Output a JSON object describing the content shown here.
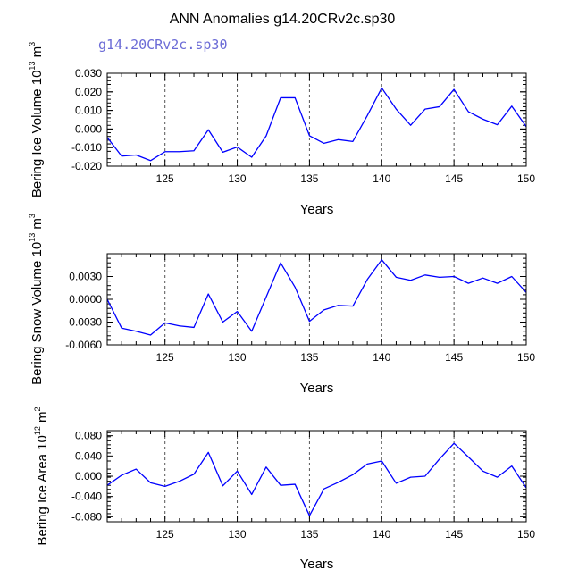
{
  "figure": {
    "title": "ANN Anomalies g14.20CRv2c.sp30",
    "case_label": "g14.20CRv2c.sp30",
    "case_label_color": "#6b6bd6",
    "line_color": "#0000ff",
    "ref_line_color": "#555555"
  },
  "chart_data": [
    {
      "type": "line",
      "xlabel": "Years",
      "ylabel_main": "Bering Ice Volume 10",
      "ylabel_sup": "13",
      "ylabel_unit": " m",
      "ylabel_unit_sup": "3",
      "xlim": [
        121,
        150
      ],
      "ylim": [
        -0.02,
        0.03
      ],
      "xticks": [
        125,
        130,
        135,
        140,
        145,
        150
      ],
      "xtick_labels": [
        "125",
        "130",
        "135",
        "140",
        "145",
        "150"
      ],
      "yticks": [
        -0.02,
        -0.01,
        0.0,
        0.01,
        0.02,
        0.03
      ],
      "ytick_labels": [
        "-0.020",
        "-0.010",
        "0.000",
        "0.010",
        "0.020",
        "0.030"
      ],
      "x": [
        121,
        122,
        123,
        124,
        125,
        126,
        127,
        128,
        129,
        130,
        131,
        132,
        133,
        134,
        135,
        136,
        137,
        138,
        139,
        140,
        141,
        142,
        143,
        144,
        145,
        146,
        147,
        148,
        149,
        150
      ],
      "y": [
        -0.0045,
        -0.0146,
        -0.014,
        -0.017,
        -0.0122,
        -0.0122,
        -0.0117,
        -0.0004,
        -0.0125,
        -0.0097,
        -0.0152,
        -0.0037,
        0.0168,
        0.0168,
        -0.0036,
        -0.0077,
        -0.0057,
        -0.0067,
        0.0072,
        0.0221,
        0.0107,
        0.002,
        0.0107,
        0.012,
        0.0213,
        0.0093,
        0.0053,
        0.0023,
        0.0123,
        0.0013
      ]
    },
    {
      "type": "line",
      "xlabel": "Years",
      "ylabel_main": "Bering Snow Volume 10",
      "ylabel_sup": "13",
      "ylabel_unit": " m",
      "ylabel_unit_sup": "3",
      "xlim": [
        121,
        150
      ],
      "ylim": [
        -0.006,
        0.006
      ],
      "xticks": [
        125,
        130,
        135,
        140,
        145,
        150
      ],
      "xtick_labels": [
        "125",
        "130",
        "135",
        "140",
        "145",
        "150"
      ],
      "yticks": [
        -0.006,
        -0.003,
        0.0,
        0.003
      ],
      "ytick_labels": [
        "-0.0060",
        "-0.0030",
        "0.0000",
        "0.0030"
      ],
      "x": [
        121,
        122,
        123,
        124,
        125,
        126,
        127,
        128,
        129,
        130,
        131,
        132,
        133,
        134,
        135,
        136,
        137,
        138,
        139,
        140,
        141,
        142,
        143,
        144,
        145,
        146,
        147,
        148,
        149,
        150
      ],
      "y": [
        0.0,
        -0.0038,
        -0.0042,
        -0.0047,
        -0.0031,
        -0.0035,
        -0.0037,
        0.0007,
        -0.003,
        -0.0016,
        -0.0042,
        0.0003,
        0.0048,
        0.0016,
        -0.0029,
        -0.0014,
        -0.0008,
        -0.0009,
        0.0026,
        0.0052,
        0.0029,
        0.0025,
        0.0032,
        0.0029,
        0.003,
        0.0021,
        0.0028,
        0.0021,
        0.003,
        0.0009
      ]
    },
    {
      "type": "line",
      "xlabel": "Years",
      "ylabel_main": "Bering Ice Area 10",
      "ylabel_sup": "12",
      "ylabel_unit": " m",
      "ylabel_unit_sup": "2",
      "xlim": [
        121,
        150
      ],
      "ylim": [
        -0.09,
        0.09
      ],
      "xticks": [
        125,
        130,
        135,
        140,
        145,
        150
      ],
      "xtick_labels": [
        "125",
        "130",
        "135",
        "140",
        "145",
        "150"
      ],
      "yticks": [
        -0.08,
        -0.04,
        0.0,
        0.04,
        0.08
      ],
      "ytick_labels": [
        "-0.080",
        "-0.040",
        "0.000",
        "0.040",
        "0.080"
      ],
      "x": [
        121,
        122,
        123,
        124,
        125,
        126,
        127,
        128,
        129,
        130,
        131,
        132,
        133,
        134,
        135,
        136,
        137,
        138,
        139,
        140,
        141,
        142,
        143,
        144,
        145,
        146,
        147,
        148,
        149,
        150
      ],
      "y": [
        -0.018,
        0.002,
        0.014,
        -0.013,
        -0.02,
        -0.01,
        0.004,
        0.047,
        -0.019,
        0.01,
        -0.036,
        0.018,
        -0.018,
        -0.016,
        -0.078,
        -0.025,
        -0.012,
        0.003,
        0.024,
        0.03,
        -0.014,
        -0.002,
        0.0,
        0.034,
        0.065,
        0.038,
        0.01,
        -0.002,
        0.02,
        -0.023
      ]
    }
  ]
}
